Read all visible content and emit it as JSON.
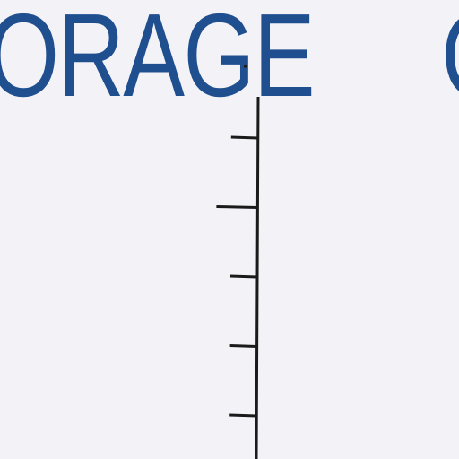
{
  "headline": {
    "text": "ORAGE",
    "right_text": "C",
    "color": "#1f4f8f"
  },
  "ruler": {
    "color": "#1a1a1a",
    "icon": "ruler-scale-icon",
    "tick_levels": [
      "short",
      "long",
      "short",
      "short",
      "short"
    ]
  },
  "background_color": "#f3f3f7"
}
